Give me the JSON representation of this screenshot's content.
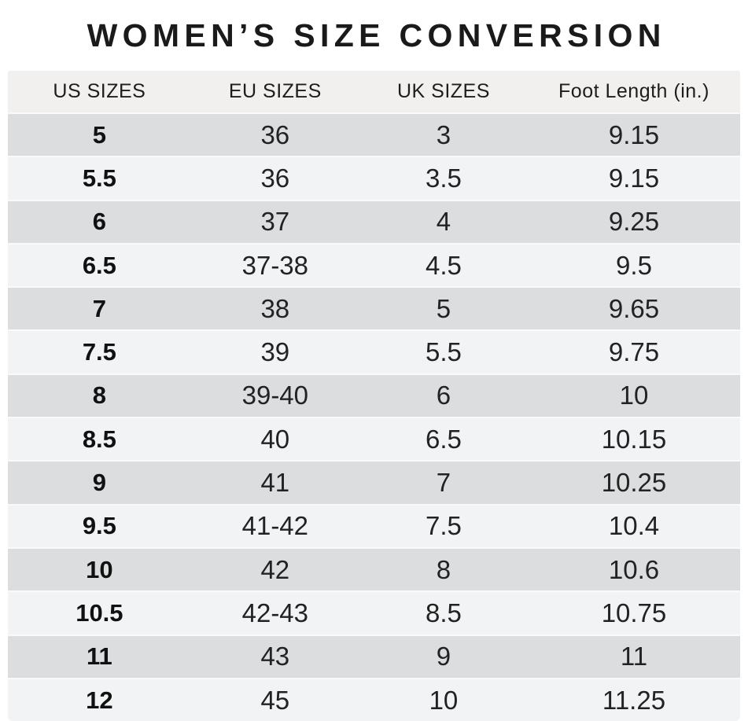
{
  "title": "WOMEN’S SIZE CONVERSION",
  "chart_data": {
    "type": "table",
    "title": "WOMEN’S SIZE CONVERSION",
    "columns": [
      "US SIZES",
      "EU SIZES",
      "UK SIZES",
      "Foot Length (in.)"
    ],
    "rows": [
      [
        "5",
        "36",
        "3",
        "9.15"
      ],
      [
        "5.5",
        "36",
        "3.5",
        "9.15"
      ],
      [
        "6",
        "37",
        "4",
        "9.25"
      ],
      [
        "6.5",
        "37-38",
        "4.5",
        "9.5"
      ],
      [
        "7",
        "38",
        "5",
        "9.65"
      ],
      [
        "7.5",
        "39",
        "5.5",
        "9.75"
      ],
      [
        "8",
        "39-40",
        "6",
        "10"
      ],
      [
        "8.5",
        "40",
        "6.5",
        "10.15"
      ],
      [
        "9",
        "41",
        "7",
        "10.25"
      ],
      [
        "9.5",
        "41-42",
        "7.5",
        "10.4"
      ],
      [
        "10",
        "42",
        "8",
        "10.6"
      ],
      [
        "10.5",
        "42-43",
        "8.5",
        "10.75"
      ],
      [
        "11",
        "43",
        "9",
        "11"
      ],
      [
        "12",
        "45",
        "10",
        "11.25"
      ]
    ]
  },
  "colors": {
    "row_dark": "#dcddde",
    "row_light": "#f2f3f4",
    "header_bg": "#f1f0ee",
    "separator": "#fafafa",
    "title_text": "#1a1a1a",
    "cell_text": "#222222"
  }
}
